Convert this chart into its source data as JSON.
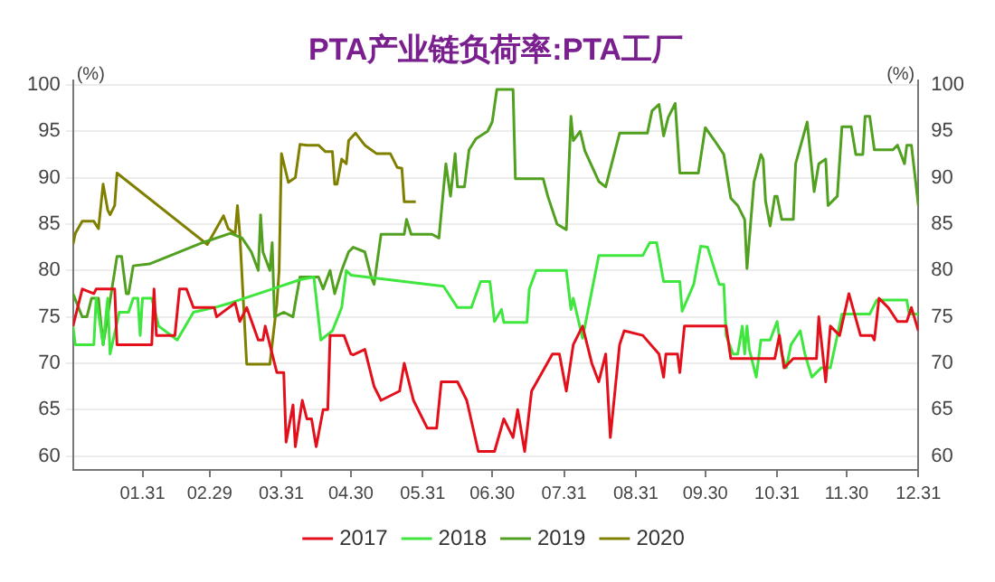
{
  "chart_data": {
    "type": "line",
    "title": "PTA产业链负荷率:PTA工厂",
    "ylabel": "(%)",
    "y2label": "(%)",
    "xlim": [
      "--01-01",
      "--12-31"
    ],
    "xticks": [
      {
        "value": "--01-31",
        "label": "01.31"
      },
      {
        "value": "--02-29",
        "label": "02.29"
      },
      {
        "value": "--03-31",
        "label": "03.31"
      },
      {
        "value": "--04-30",
        "label": "04.30"
      },
      {
        "value": "--05-31",
        "label": "05.31"
      },
      {
        "value": "--06-30",
        "label": "06.30"
      },
      {
        "value": "--07-31",
        "label": "07.31"
      },
      {
        "value": "--08-31",
        "label": "08.31"
      },
      {
        "value": "--09-30",
        "label": "09.30"
      },
      {
        "value": "--10-31",
        "label": "10.31"
      },
      {
        "value": "--11-30",
        "label": "11.30"
      },
      {
        "value": "--12-31",
        "label": "12.31"
      }
    ],
    "ylim": [
      58.5,
      100.5
    ],
    "yticks": [
      60,
      65,
      70,
      75,
      80,
      85,
      90,
      95,
      100
    ],
    "y2lim": [
      58.5,
      100.5
    ],
    "y2ticks": [
      60,
      65,
      70,
      75,
      80,
      85,
      90,
      95,
      100
    ],
    "grid": "y",
    "legend": "bottom",
    "series": [
      {
        "name": "2017",
        "color": "#e3101c",
        "x": [
          "--01-01",
          "--01-05",
          "--01-10",
          "--01-11",
          "--01-19",
          "--01-20",
          "--02-04",
          "--02-05",
          "--02-06",
          "--02-14",
          "--02-16",
          "--02-19",
          "--02-22",
          "--03-02",
          "--03-03",
          "--03-11",
          "--03-13",
          "--03-16",
          "--03-21",
          "--03-23",
          "--03-24",
          "--03-29",
          "--04-01",
          "--04-02",
          "--04-05",
          "--04-06",
          "--04-09",
          "--04-11",
          "--04-13",
          "--04-15",
          "--04-18",
          "--04-20",
          "--04-21",
          "--04-27",
          "--04-30",
          "--05-01",
          "--05-06",
          "--05-10",
          "--05-13",
          "--05-21",
          "--05-23",
          "--05-27",
          "--06-02",
          "--06-06",
          "--06-08",
          "--06-15",
          "--06-19",
          "--06-24",
          "--07-01",
          "--07-05",
          "--07-09",
          "--07-11",
          "--07-14",
          "--07-17",
          "--07-26",
          "--07-29",
          "--08-01",
          "--08-04",
          "--08-08",
          "--08-12",
          "--08-15",
          "--08-18",
          "--08-20",
          "--08-24",
          "--08-26",
          "--09-03",
          "--09-10",
          "--09-12",
          "--09-13",
          "--09-18",
          "--09-19",
          "--09-21",
          "--10-09",
          "--10-11",
          "--10-30",
          "--11-01",
          "--11-03",
          "--11-07",
          "--11-17",
          "--11-18",
          "--11-21",
          "--11-23",
          "--11-27",
          "--12-01",
          "--12-06",
          "--12-11",
          "--12-12",
          "--12-14",
          "--12-18",
          "--12-22",
          "--12-26",
          "--12-28",
          "--12-31"
        ],
        "values": [
          74,
          78,
          77.5,
          78,
          78,
          72,
          72,
          78,
          73,
          73,
          78,
          78,
          76,
          76,
          75,
          76.5,
          74.5,
          76,
          72.5,
          72.5,
          74,
          69,
          69,
          61.5,
          65.5,
          61,
          66,
          64,
          64,
          61,
          65,
          65,
          73,
          73,
          71,
          70.9,
          71.5,
          67.5,
          66,
          67,
          70,
          66,
          63,
          63,
          68,
          68,
          66,
          60.5,
          60.5,
          64,
          62,
          65,
          60.5,
          67,
          71,
          71,
          67,
          72,
          74,
          70,
          68,
          71,
          62,
          72,
          73.5,
          73,
          71,
          68.5,
          71,
          71,
          69,
          74,
          74,
          70.5,
          70.5,
          73,
          69.5,
          70.5,
          70.5,
          75,
          68,
          74,
          73,
          77.5,
          73,
          73,
          72.5,
          77,
          76,
          74.5,
          74.5,
          76,
          73.5
        ]
      },
      {
        "name": "2018",
        "color": "#3ee63e",
        "x": [
          "--01-01",
          "--01-02",
          "--01-10",
          "--01-11",
          "--01-14",
          "--01-16",
          "--01-17",
          "--01-21",
          "--01-25",
          "--01-27",
          "--01-29",
          "--01-30",
          "--01-31",
          "--02-04",
          "--02-07",
          "--02-15",
          "--02-22",
          "--03-02",
          "--03-09",
          "--03-27",
          "--04-08",
          "--04-14",
          "--04-17",
          "--04-22",
          "--04-26",
          "--04-28",
          "--04-30",
          "--06-09",
          "--06-15",
          "--06-21",
          "--06-25",
          "--06-29",
          "--07-01",
          "--07-04",
          "--07-05",
          "--07-15",
          "--07-16",
          "--07-19",
          "--08-01",
          "--08-03",
          "--08-04",
          "--08-08",
          "--08-15",
          "--09-03",
          "--09-06",
          "--09-09",
          "--09-12",
          "--09-19",
          "--09-20",
          "--09-25",
          "--09-28",
          "--10-01",
          "--10-06",
          "--10-08",
          "--10-09",
          "--10-12",
          "--10-14",
          "--10-16",
          "--10-17",
          "--10-18",
          "--10-19",
          "--10-22",
          "--10-24",
          "--10-28",
          "--10-31",
          "--11-02",
          "--11-04",
          "--11-06",
          "--11-10",
          "--11-12",
          "--11-15",
          "--11-19",
          "--11-23",
          "--11-28",
          "--12-10",
          "--12-13",
          "--12-26",
          "--12-27",
          "--12-31"
        ],
        "values": [
          74,
          72,
          72,
          77,
          72,
          77,
          71,
          75.5,
          75.5,
          77,
          77,
          73,
          77,
          77,
          74,
          72.5,
          75.5,
          76,
          76.5,
          78,
          79,
          79.3,
          72.5,
          73.5,
          76,
          80,
          79.5,
          78.3,
          76,
          76,
          78.8,
          78.8,
          74.5,
          75.8,
          74.4,
          74.4,
          78,
          80,
          80,
          75.8,
          77,
          72.7,
          81.6,
          81.6,
          83,
          83,
          78.8,
          78.8,
          75.6,
          78.5,
          82.6,
          82.5,
          78.5,
          78.5,
          73,
          71,
          71,
          74,
          71,
          74,
          71.5,
          68.5,
          72.5,
          72.5,
          74.5,
          71,
          69.5,
          72,
          73.5,
          71,
          68.5,
          69.5,
          69.5,
          75.3,
          75.3,
          76.8,
          76.8,
          75.3,
          75.3
        ]
      },
      {
        "name": "2019",
        "color": "#52a020",
        "x": [
          "--01-01",
          "--01-05",
          "--01-07",
          "--01-09",
          "--01-12",
          "--01-14",
          "--01-20",
          "--01-22",
          "--01-24",
          "--01-25",
          "--01-27",
          "--02-03",
          "--02-26",
          "--03-09",
          "--03-14",
          "--03-18",
          "--03-21",
          "--03-22",
          "--03-23",
          "--03-26",
          "--03-27",
          "--03-28",
          "--04-01",
          "--04-05",
          "--04-06",
          "--04-08",
          "--04-16",
          "--04-18",
          "--04-21",
          "--04-23",
          "--04-26",
          "--04-29",
          "--05-01",
          "--05-06",
          "--05-09",
          "--05-10",
          "--05-13",
          "--05-23",
          "--05-24",
          "--05-26",
          "--06-04",
          "--06-07",
          "--06-10",
          "--06-12",
          "--06-14",
          "--06-15",
          "--06-18",
          "--06-20",
          "--06-23",
          "--06-28",
          "--06-30",
          "--07-02",
          "--07-09",
          "--07-10",
          "--07-22",
          "--07-24",
          "--07-28",
          "--08-01",
          "--08-03",
          "--08-04",
          "--08-07",
          "--08-09",
          "--08-15",
          "--08-18",
          "--08-24",
          "--09-05",
          "--09-07",
          "--09-10",
          "--09-12",
          "--09-14",
          "--09-17",
          "--09-19",
          "--09-27",
          "--09-30",
          "--10-04",
          "--10-08",
          "--10-11",
          "--10-14",
          "--10-17",
          "--10-18",
          "--10-21",
          "--10-24",
          "--10-25",
          "--10-26",
          "--10-28",
          "--10-30",
          "--10-31",
          "--11-02",
          "--11-07",
          "--11-08",
          "--11-13",
          "--11-16",
          "--11-18",
          "--11-21",
          "--11-22",
          "--11-26",
          "--11-28",
          "--12-02",
          "--12-04",
          "--12-07",
          "--12-08",
          "--12-10",
          "--12-12",
          "--12-20",
          "--12-22",
          "--12-25",
          "--12-26",
          "--12-28",
          "--12-31"
        ],
        "values": [
          77.5,
          75,
          75,
          77,
          77,
          72,
          81.5,
          81.5,
          77.5,
          77.5,
          80.5,
          80.7,
          83,
          84,
          83.5,
          82,
          80,
          86,
          82,
          80,
          83,
          75,
          75.5,
          75,
          76.5,
          79.3,
          79.3,
          78,
          80,
          77.5,
          80,
          82,
          82.5,
          82,
          79.1,
          78.5,
          83.9,
          83.9,
          85.5,
          83.9,
          83.9,
          83.5,
          91.5,
          88,
          92.6,
          89,
          89,
          93,
          94.2,
          95,
          96,
          99.5,
          99.5,
          89.9,
          89.9,
          88,
          85,
          84.4,
          96.6,
          94,
          95,
          92.9,
          89.6,
          89,
          94.8,
          94.8,
          97.2,
          97.9,
          94.5,
          96.5,
          98,
          90.5,
          90.5,
          95.4,
          94,
          92.5,
          87.8,
          87,
          85.5,
          80.2,
          89.5,
          92.5,
          92,
          87.5,
          84.8,
          88,
          88,
          85.5,
          85.5,
          91.5,
          96,
          88.5,
          91.5,
          92,
          87,
          88,
          95.5,
          95.5,
          92.5,
          92.5,
          96.6,
          96.6,
          93,
          93,
          93.5,
          91.5,
          93.5,
          93.5,
          87
        ]
      },
      {
        "name": "2020",
        "color": "#808000",
        "x": [
          "--01-01",
          "--01-02",
          "--01-05",
          "--01-10",
          "--01-12",
          "--01-14",
          "--01-16",
          "--01-17",
          "--01-19",
          "--01-20",
          "--02-28",
          "--03-06",
          "--03-08",
          "--03-11",
          "--03-12",
          "--03-13",
          "--03-16",
          "--03-26",
          "--03-29",
          "--03-30",
          "--03-31",
          "--04-03",
          "--04-06",
          "--04-08",
          "--04-11",
          "--04-16",
          "--04-19",
          "--04-22",
          "--04-23",
          "--04-24",
          "--04-26",
          "--04-28",
          "--04-29",
          "--05-02",
          "--05-06",
          "--05-11",
          "--05-17",
          "--05-20",
          "--05-22",
          "--05-23",
          "--05-28"
        ],
        "values": [
          82.8,
          84,
          85.3,
          85.3,
          84.5,
          89.3,
          86.5,
          86,
          87,
          90.5,
          82.8,
          85.9,
          84.5,
          84,
          87,
          84,
          69.9,
          69.9,
          76.4,
          80,
          92.6,
          89.5,
          90,
          93.6,
          93.5,
          93.5,
          92.8,
          92.8,
          89.3,
          89.3,
          92,
          91.5,
          94,
          94.8,
          93.5,
          92.6,
          92.6,
          91.1,
          91,
          87.4,
          87.4
        ]
      }
    ]
  }
}
